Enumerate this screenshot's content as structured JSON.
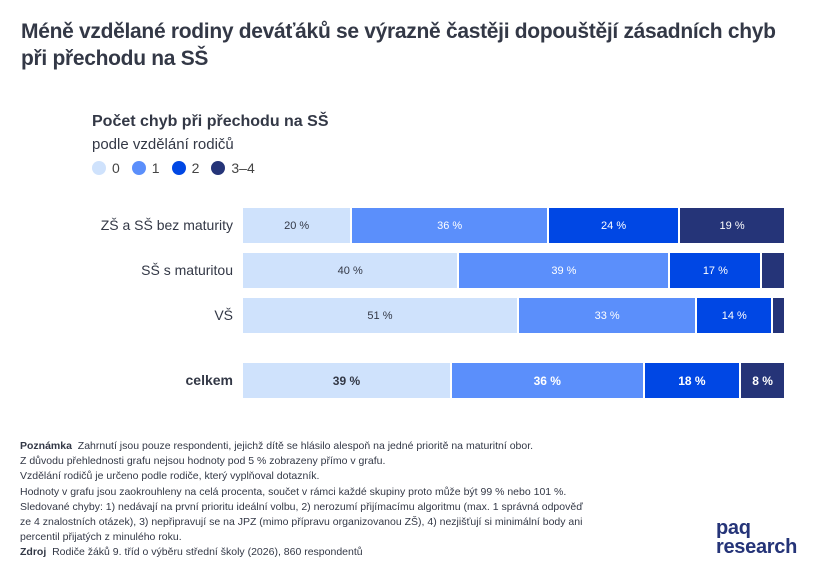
{
  "title": "Méně vzdělané rodiny deváťáků se výrazně častěji dopouštějí zásadních chyb při přechodu na SŠ",
  "chart_data": {
    "type": "bar",
    "orientation": "horizontal",
    "stacked": true,
    "title": "Počet chyb při přechodu na SŠ",
    "subtitle": "podle vzdělání rodičů",
    "categories": [
      "ZŠ a SŠ bez maturity",
      "SŠ s maturitou",
      "VŠ",
      "celkem"
    ],
    "series": [
      {
        "name": "0",
        "color": "#cfe2fc",
        "label_color": "#333846",
        "values": [
          20,
          40,
          51,
          39
        ],
        "labels": [
          "20 %",
          "40 %",
          "51 %",
          "39 %"
        ]
      },
      {
        "name": "1",
        "color": "#5b8ffb",
        "label_color": "#ffffff",
        "values": [
          36,
          39,
          33,
          36
        ],
        "labels": [
          "36 %",
          "39 %",
          "33 %",
          "36 %"
        ]
      },
      {
        "name": "2",
        "color": "#0047e4",
        "label_color": "#ffffff",
        "values": [
          24,
          17,
          14,
          18
        ],
        "labels": [
          "24 %",
          "17 %",
          "14 %",
          "18 %"
        ]
      },
      {
        "name": "3–4",
        "color": "#253478",
        "label_color": "#ffffff",
        "values": [
          19,
          4,
          2,
          8
        ],
        "labels": [
          "19 %",
          "",
          "",
          "8 %"
        ]
      }
    ],
    "legend_position": "top-left",
    "xlim": [
      0,
      100
    ],
    "grid": false
  },
  "notes": {
    "note_label": "Poznámka",
    "note_lines": [
      "Zahrnutí jsou pouze respondenti, jejichž dítě se hlásilo alespoň na jedné prioritě na maturitní obor.",
      "Z důvodu přehlednosti grafu nejsou hodnoty pod 5 % zobrazeny přímo v grafu.",
      "Vzdělání rodičů je určeno podle rodiče, který vyplňoval dotazník.",
      "Hodnoty v grafu jsou zaokrouhleny na celá procenta, součet v rámci každé skupiny proto může být 99 % nebo 101 %.",
      "Sledované chyby: 1) nedávají na první prioritu ideální volbu, 2) nerozumí přijímacímu algoritmu (max. 1 správná odpověď",
      "ze 4 znalostních otázek), 3) nepřipravují se na JPZ (mimo přípravu organizovanou ZŠ), 4) nezjišťují si minimální body ani",
      "percentil přijatých z minulého roku."
    ],
    "source_label": "Zdroj",
    "source_text": "Rodiče žáků 9. tříd o výběru střední školy (2026), 860 respondentů"
  },
  "logo": {
    "line1": "paq",
    "line2": "research"
  }
}
